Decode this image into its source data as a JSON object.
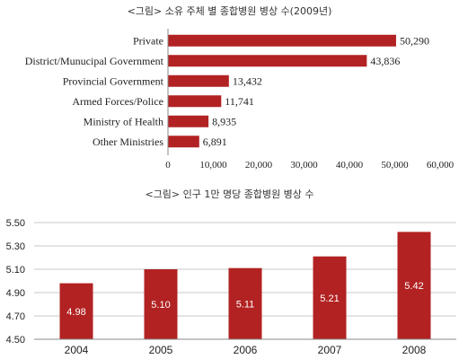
{
  "chart_data": [
    {
      "type": "bar",
      "orientation": "horizontal",
      "title": "<그림> 소유 주체 별 종합병원 병상 수(2009년)",
      "categories": [
        "Private",
        "District/Munucipal Government",
        "Provincial Government",
        "Armed Forces/Police",
        "Ministry of Health",
        "Other Ministries"
      ],
      "values": [
        50290,
        43836,
        13432,
        11741,
        8935,
        6891
      ],
      "value_labels": [
        "50,290",
        "43,836",
        "13,432",
        "11,741",
        "8,935",
        "6,891"
      ],
      "xlim": [
        0,
        60000
      ],
      "x_ticks": [
        "0",
        "10,000",
        "20,000",
        "30,000",
        "40,000",
        "50,000",
        "60,000"
      ],
      "color": "#b22222"
    },
    {
      "type": "bar",
      "title": "<그림> 인구 1만 명당 종합병원 병상 수",
      "categories": [
        "2004",
        "2005",
        "2006",
        "2007",
        "2008"
      ],
      "values": [
        4.98,
        5.1,
        5.11,
        5.21,
        5.42
      ],
      "value_labels": [
        "4.98",
        "5.10",
        "5.11",
        "5.21",
        "5.42"
      ],
      "ylim": [
        4.5,
        5.5
      ],
      "y_ticks": [
        "4.50",
        "4.70",
        "4.90",
        "5.10",
        "5.30",
        "5.50"
      ],
      "grid": true,
      "color": "#b22222"
    }
  ]
}
